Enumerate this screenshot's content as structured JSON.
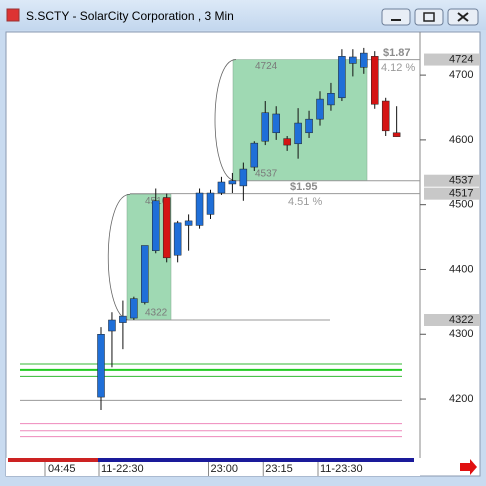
{
  "window": {
    "title": "S.SCTY - SolarCity Corporation , 3 Min"
  },
  "chart_data": {
    "type": "candlestick",
    "categories": [
      "11-22:30",
      null,
      null,
      null,
      null,
      null,
      null,
      null,
      null,
      null,
      "23:00",
      null,
      null,
      null,
      null,
      "23:15",
      null,
      null,
      null,
      null,
      "11-23:30",
      null,
      null,
      null,
      null,
      null,
      null,
      null
    ],
    "session_label": "04:45",
    "open": [
      4203,
      4305,
      4318,
      4325,
      4349,
      4429,
      4511,
      4422,
      4468,
      4468,
      4485,
      4518,
      4532,
      4529,
      4558,
      4598,
      4611,
      4602,
      4594,
      4611,
      4632,
      4654,
      4665,
      4718,
      4712,
      4729,
      4660,
      4611
    ],
    "high": [
      4311,
      4334,
      4352,
      4358,
      4437,
      4525,
      4517,
      4475,
      4485,
      4525,
      4523,
      4543,
      4549,
      4565,
      4598,
      4660,
      4652,
      4606,
      4649,
      4645,
      4675,
      4688,
      4740,
      4740,
      4742,
      4737,
      4665,
      4652
    ],
    "low": [
      4183,
      4249,
      4277,
      4322,
      4346,
      4425,
      4411,
      4411,
      4429,
      4463,
      4478,
      4515,
      4518,
      4506,
      4552,
      4592,
      4600,
      4583,
      4571,
      4603,
      4622,
      4645,
      4660,
      4698,
      4702,
      4648,
      4606,
      4605
    ],
    "close": [
      4300,
      4322,
      4328,
      4355,
      4437,
      4506,
      4418,
      4472,
      4475,
      4518,
      4518,
      4535,
      4537,
      4555,
      4595,
      4642,
      4640,
      4592,
      4626,
      4632,
      4663,
      4672,
      4729,
      4728,
      4734,
      4655,
      4614,
      4605
    ],
    "up_color": "#1f6fd8",
    "down_color": "#d41414",
    "ylim": [
      4109,
      4765
    ],
    "yticks": [
      4200,
      4300,
      4400,
      4500,
      4600,
      4700
    ],
    "price_markers": [
      4724,
      4537,
      4517,
      4322
    ],
    "levels": [
      {
        "value": 4254,
        "color": "#33b833"
      },
      {
        "value": 4245,
        "color": "#22cc22"
      },
      {
        "value": 4235,
        "color": "#33b833"
      },
      {
        "value": 4198,
        "color": "#999999"
      },
      {
        "value": 4162,
        "color": "#ee88bb"
      },
      {
        "value": 4151,
        "color": "#ee88bb"
      },
      {
        "value": 4142,
        "color": "#ee88bb"
      }
    ],
    "boxes": [
      {
        "top": 4516,
        "bottom": 4322,
        "top_label": "4516",
        "bottom_label": "4322",
        "change": "$1.95",
        "percent": "4.51 %"
      },
      {
        "top": 4724,
        "bottom": 4537,
        "top_label": "4724",
        "bottom_label": "4537",
        "change": "$1.87",
        "percent": "4.12 %"
      }
    ],
    "box_color": "#8fd3a6"
  }
}
